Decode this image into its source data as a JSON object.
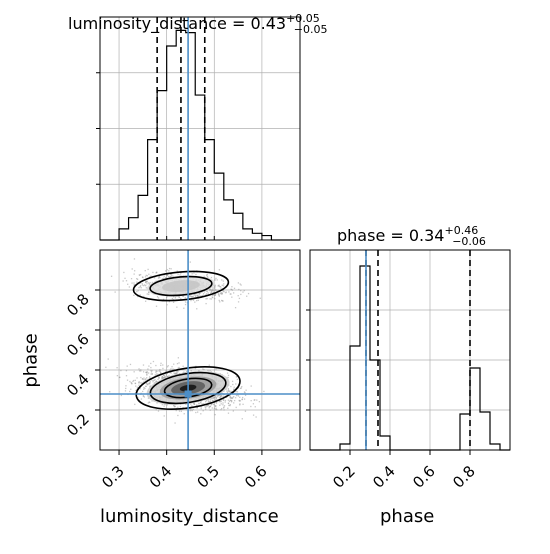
{
  "chart_data": {
    "type": "corner",
    "parameters": [
      "luminosity_distance",
      "phase"
    ],
    "colors": {
      "truth": "#4c8ec7",
      "hist": "#000000",
      "points": "#9a9a9a",
      "grid": "#b0b0b0"
    },
    "panels": {
      "luminosity_distance_hist": {
        "type": "histogram",
        "title": {
          "prefix": "luminosity_distance = ",
          "value": "0.43",
          "upper": "+0.05",
          "lower": "−0.05"
        },
        "xlim": [
          0.26,
          0.68
        ],
        "ylim": [
          0,
          1.0
        ],
        "quantiles": [
          0.38,
          0.43,
          0.48
        ],
        "truth": 0.445,
        "bin_edges": [
          0.26,
          0.28,
          0.3,
          0.32,
          0.34,
          0.36,
          0.38,
          0.4,
          0.42,
          0.44,
          0.46,
          0.48,
          0.5,
          0.52,
          0.54,
          0.56,
          0.58,
          0.6,
          0.62,
          0.64,
          0.66,
          0.68
        ],
        "bin_values": [
          0.0,
          0.0,
          0.05,
          0.1,
          0.2,
          0.45,
          0.67,
          0.87,
          0.94,
          0.93,
          0.65,
          0.45,
          0.3,
          0.18,
          0.12,
          0.05,
          0.03,
          0.02,
          0.0,
          0.0,
          0.0
        ]
      },
      "phase_hist": {
        "type": "histogram",
        "title": {
          "prefix": "phase = ",
          "value": "0.34",
          "upper": "+0.46",
          "lower": "−0.06"
        },
        "xlim": [
          0.0,
          1.0
        ],
        "ylim": [
          0,
          1.0
        ],
        "xticks": [
          "0.2",
          "0.4",
          "0.6",
          "0.8"
        ],
        "quantiles": [
          0.28,
          0.34,
          0.8
        ],
        "truth": 0.28,
        "bin_edges": [
          0.0,
          0.05,
          0.1,
          0.15,
          0.2,
          0.25,
          0.3,
          0.35,
          0.4,
          0.45,
          0.5,
          0.55,
          0.6,
          0.65,
          0.7,
          0.75,
          0.8,
          0.85,
          0.9,
          0.95,
          1.0
        ],
        "bin_values": [
          0.0,
          0.0,
          0.0,
          0.03,
          0.52,
          0.92,
          0.45,
          0.07,
          0.0,
          0.0,
          0.0,
          0.0,
          0.0,
          0.0,
          0.0,
          0.18,
          0.41,
          0.19,
          0.03,
          0.0
        ]
      },
      "joint": {
        "type": "contour_scatter",
        "xlabel": "luminosity_distance",
        "ylabel": "phase",
        "xlim": [
          0.26,
          0.68
        ],
        "ylim": [
          0.0,
          1.0
        ],
        "xticks": [
          "0.3",
          "0.4",
          "0.5",
          "0.6"
        ],
        "yticks": [
          "0.2",
          "0.4",
          "0.6",
          "0.8"
        ],
        "truth": {
          "x": 0.445,
          "y": 0.28
        },
        "modes": [
          {
            "cx": 0.445,
            "cy": 0.31,
            "sx": 0.05,
            "sy": 0.045,
            "weight": 0.7,
            "tilt": -0.35
          },
          {
            "cx": 0.43,
            "cy": 0.82,
            "sx": 0.05,
            "sy": 0.035,
            "weight": 0.3,
            "tilt": -0.2
          }
        ]
      }
    }
  }
}
